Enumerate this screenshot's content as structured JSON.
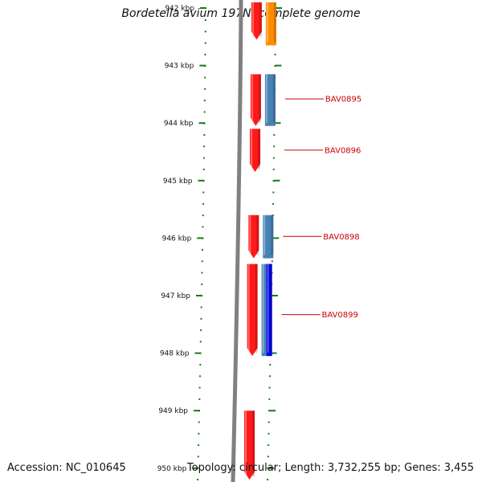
{
  "title": "Bordetella avium 197N, complete genome",
  "footer": {
    "accession": "Accession: NC_010645",
    "summary": "Topology: circular; Length: 3,732,255 bp; Genes: 3,455"
  },
  "colors": {
    "backbone": "#808080",
    "tick": "#1a7a1a",
    "forward_cds": "#ff1a1a",
    "reverse_cds": "#4682b4",
    "reverse_cds_dark": "#0000ee",
    "other_feature": "#ff8c00",
    "label": "#cc0000"
  },
  "scale": {
    "ticks": [
      {
        "label": "942 kbp",
        "kbp": 942
      },
      {
        "label": "943 kbp",
        "kbp": 943
      },
      {
        "label": "944 kbp",
        "kbp": 944
      },
      {
        "label": "945 kbp",
        "kbp": 945
      },
      {
        "label": "946 kbp",
        "kbp": 946
      },
      {
        "label": "947 kbp",
        "kbp": 947
      },
      {
        "label": "948 kbp",
        "kbp": 948
      },
      {
        "label": "949 kbp",
        "kbp": 949
      },
      {
        "label": "950 kbp",
        "kbp": 950
      }
    ]
  },
  "features": [
    {
      "strand": "forward",
      "start_kbp": 941.9,
      "end_kbp": 942.55,
      "color": "#ff1a1a"
    },
    {
      "strand": "reverse",
      "start_kbp": 941.9,
      "end_kbp": 942.65,
      "color": "#ff8c00"
    },
    {
      "strand": "forward",
      "start_kbp": 943.15,
      "end_kbp": 944.05,
      "color": "#ff1a1a"
    },
    {
      "strand": "reverse",
      "start_kbp": 943.15,
      "end_kbp": 944.05,
      "color": "#4682b4"
    },
    {
      "strand": "forward",
      "start_kbp": 944.1,
      "end_kbp": 944.85,
      "color": "#ff1a1a"
    },
    {
      "strand": "forward",
      "start_kbp": 945.6,
      "end_kbp": 946.35,
      "color": "#ff1a1a"
    },
    {
      "strand": "reverse",
      "start_kbp": 945.6,
      "end_kbp": 946.35,
      "color": "#4682b4"
    },
    {
      "strand": "forward",
      "start_kbp": 946.45,
      "end_kbp": 948.05,
      "color": "#ff1a1a"
    },
    {
      "strand": "reverse",
      "start_kbp": 946.45,
      "end_kbp": 948.05,
      "color": "#4682b4"
    },
    {
      "strand": "reverse2",
      "start_kbp": 946.45,
      "end_kbp": 948.05,
      "color": "#0000ee"
    },
    {
      "strand": "forward",
      "start_kbp": 949.0,
      "end_kbp": 950.2,
      "color": "#ff1a1a"
    }
  ],
  "gene_labels": [
    {
      "text": "BAV0895",
      "kbp": 943.58
    },
    {
      "text": "BAV0896",
      "kbp": 944.47
    },
    {
      "text": "BAV0898",
      "kbp": 945.97
    },
    {
      "text": "BAV0899",
      "kbp": 947.33
    }
  ]
}
